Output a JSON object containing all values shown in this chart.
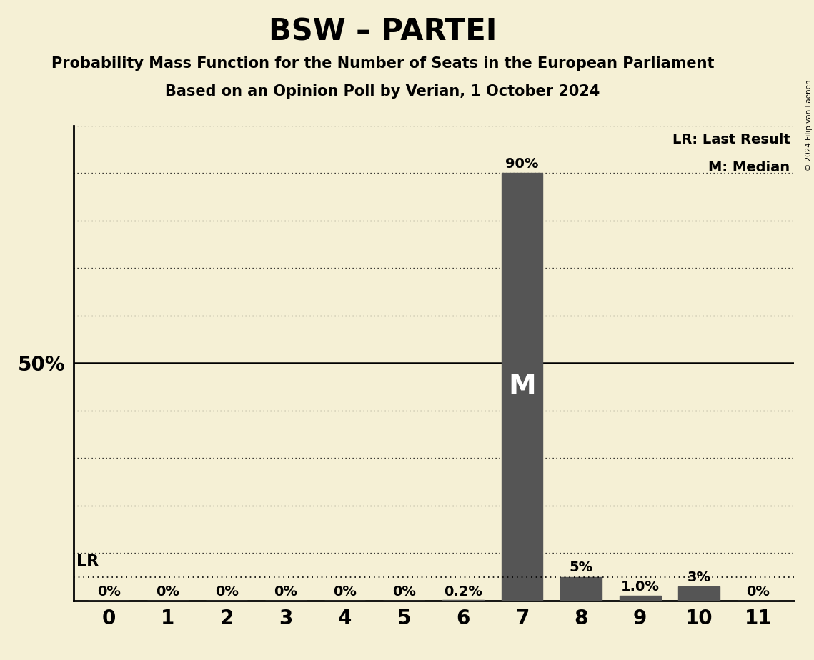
{
  "title": "BSW – PARTEI",
  "subtitle1": "Probability Mass Function for the Number of Seats in the European Parliament",
  "subtitle2": "Based on an Opinion Poll by Verian, 1 October 2024",
  "copyright": "© 2024 Filip van Laenen",
  "x_values": [
    0,
    1,
    2,
    3,
    4,
    5,
    6,
    7,
    8,
    9,
    10,
    11
  ],
  "y_values": [
    0.0,
    0.0,
    0.0,
    0.0,
    0.0,
    0.0,
    0.002,
    0.9,
    0.05,
    0.01,
    0.03,
    0.0
  ],
  "bar_labels": [
    "0%",
    "0%",
    "0%",
    "0%",
    "0%",
    "0%",
    "0.2%",
    "90%",
    "5%",
    "1.0%",
    "3%",
    "0%"
  ],
  "bar_color": "#555555",
  "background_color": "#f5f0d5",
  "median_seat": 7,
  "lr_value": 0.05,
  "legend_lr": "LR: Last Result",
  "legend_m": "M: Median",
  "y_tick_50_label": "50%",
  "ylim_max": 1.0,
  "fifty_pct": 0.5,
  "title_fontsize": 30,
  "subtitle_fontsize": 15,
  "label_fontsize": 14,
  "axis_label_fontsize": 20,
  "median_label_fontsize": 28,
  "lr_label_fontsize": 16,
  "legend_fontsize": 14
}
